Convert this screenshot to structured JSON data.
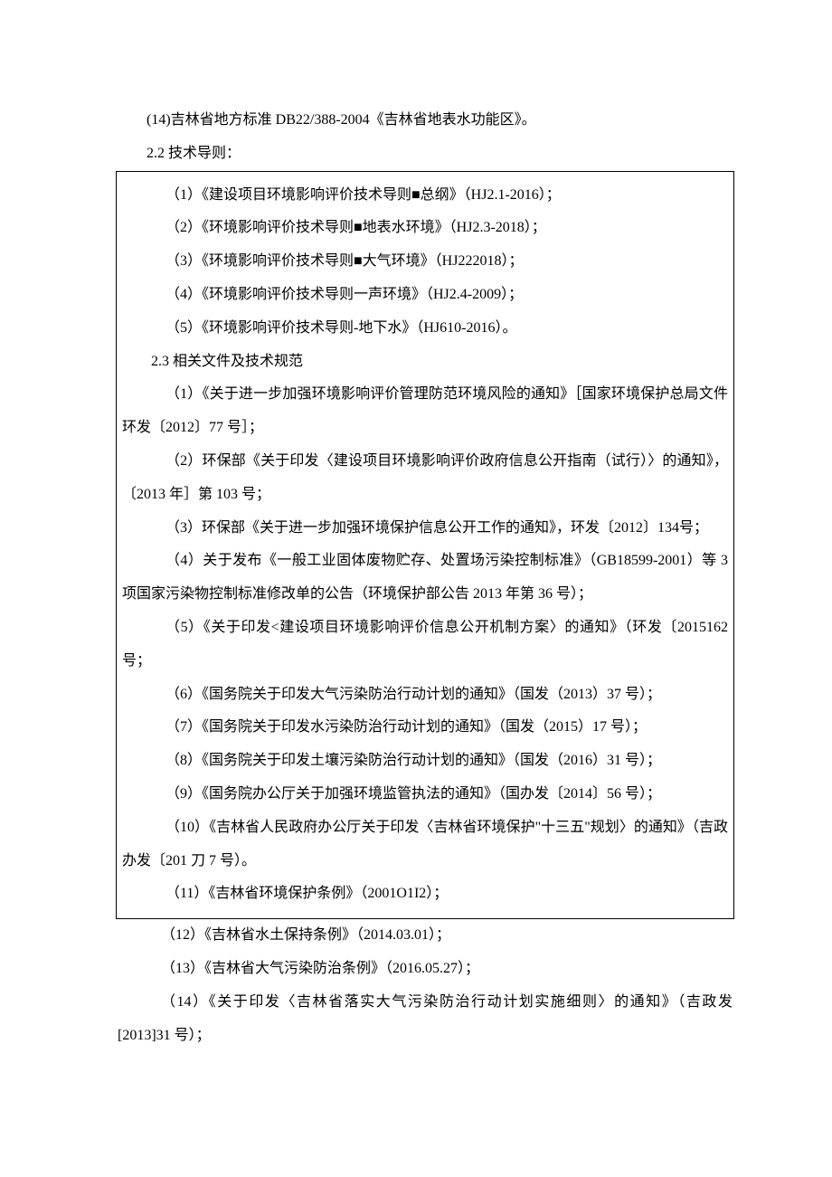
{
  "lines": {
    "intro": "(14)吉林省地方标准 DB22/388-2004《吉林省地表水功能区》。",
    "s22_title": "2.2 技术导则：",
    "s22_1": "（1）《建设项目环境影响评价技术导则■总纲》（HJ2.1-2016）；",
    "s22_2": "（2）《环境影响评价技术导则■地表水环境》（HJ2.3-2018）；",
    "s22_3": "（3）《环境影响评价技术导则■大气环境》（HJ222018）；",
    "s22_4": "（4）《环境影响评价技术导则一声环境》（HJ2.4-2009）；",
    "s22_5": "（5）《环境影响评价技术导则-地下水》（HJ610-2016）。",
    "s23_title": "2.3 相关文件及技术规范",
    "s23_1": "（1）《关于进一步加强环境影响评价管理防范环境风险的通知》［国家环境保护总局文件环发〔2012〕77 号］；",
    "s23_2": "（2）环保部《关于印发〈建设项目环境影响评价政府信息公开指南（试行）〉的通知》，〔2013 年］第 103 号；",
    "s23_3": "（3）环保部《关于进一步加强环境保护信息公开工作的通知》，环发〔2012〕134号；",
    "s23_4": "（4）关于发布《一般工业固体废物贮存、处置场污染控制标准》（GB18599-2001）等 3 项国家污染物控制标准修改单的公告（环境保护部公告 2013 年第 36 号）；",
    "s23_5": "（5）《关于印发<建设项目环境影响评价信息公开机制方案〉的通知》（环发〔2015162 号；",
    "s23_6": "（6）《国务院关于印发大气污染防治行动计划的通知》（国发（2013）37 号）；",
    "s23_7": "（7）《国务院关于印发水污染防治行动计划的通知》（国发（2015）17 号）；",
    "s23_8": "（8）《国务院关于印发土壤污染防治行动计划的通知》（国发（2016）31 号）；",
    "s23_9": "（9）《国务院办公厅关于加强环境监管执法的通知》（国办发〔2014〕56 号）；",
    "s23_10": "（10）《吉林省人民政府办公厅关于印发〈吉林省环境保护\"十三五\"规划〉的通知》（吉政办发〔201 刀 7 号）。",
    "s23_11": "（11）《吉林省环境保护条例》（2001O1I2）；",
    "s23_12": "（12）《吉林省水土保持条例》（2014.03.01）；",
    "s23_13": "（13）《吉林省大气污染防治条例》（2016.05.27）；",
    "s23_14": "（14）《关于印发〈吉林省落实大气污染防治行动计划实施细则〉的通知》（吉政发[2013]31 号）；"
  }
}
